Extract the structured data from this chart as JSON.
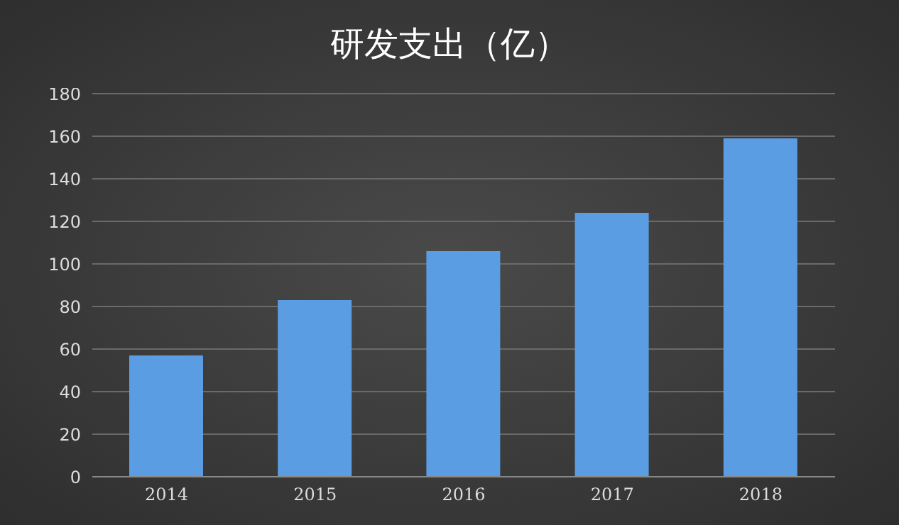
{
  "chart_data": {
    "type": "bar",
    "title": "研发支出（亿）",
    "categories": [
      "2014",
      "2015",
      "2016",
      "2017",
      "2018"
    ],
    "values": [
      57,
      83,
      106,
      124,
      159
    ],
    "color": "#5b9de3",
    "ylim": [
      0,
      180
    ],
    "yticks": [
      0,
      20,
      40,
      60,
      80,
      100,
      120,
      140,
      160,
      180
    ],
    "grid": "y"
  }
}
